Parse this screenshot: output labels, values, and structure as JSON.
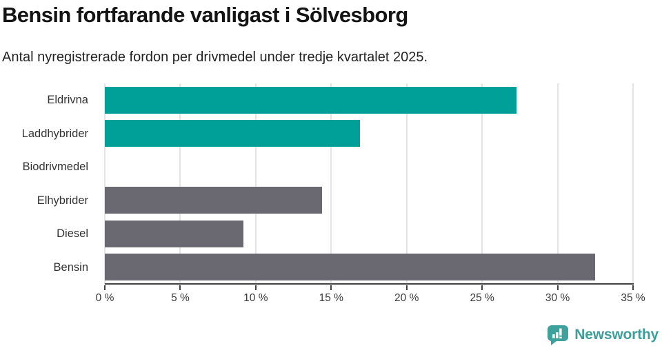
{
  "header": {
    "title": "Bensin fortfarande vanligast i Sölvesborg",
    "subtitle": "Antal nyregistrerade fordon per drivmedel under tredje kvartalet 2025."
  },
  "chart_data": {
    "type": "bar",
    "orientation": "horizontal",
    "title": "Bensin fortfarande vanligast i Sölvesborg",
    "subtitle": "Antal nyregistrerade fordon per drivmedel under tredje kvartalet 2025.",
    "categories": [
      "Eldrivna",
      "Laddhybrider",
      "Biodrivmedel",
      "Elhybrider",
      "Diesel",
      "Bensin"
    ],
    "values": [
      27.3,
      16.9,
      0,
      14.4,
      9.2,
      32.5
    ],
    "bar_colors": [
      "#00a099",
      "#00a099",
      "#00a099",
      "#6a6870",
      "#6a6870",
      "#6a6870"
    ],
    "xlabel": "",
    "ylabel": "",
    "xlim": [
      0,
      35
    ],
    "xtick_step": 5,
    "xticks": [
      "0 %",
      "5 %",
      "10 %",
      "15 %",
      "20 %",
      "25 %",
      "30 %",
      "35 %"
    ],
    "grid": "vertical",
    "legend": "none"
  },
  "colors": {
    "highlight_teal": "#00a099",
    "neutral_gray": "#6a6870",
    "gridline": "#e4e4e4",
    "axis": "#424242",
    "logo_teal": "#3fa19b",
    "brand_text": "#3f9e99"
  },
  "footer": {
    "brand": "Newsworthy"
  }
}
